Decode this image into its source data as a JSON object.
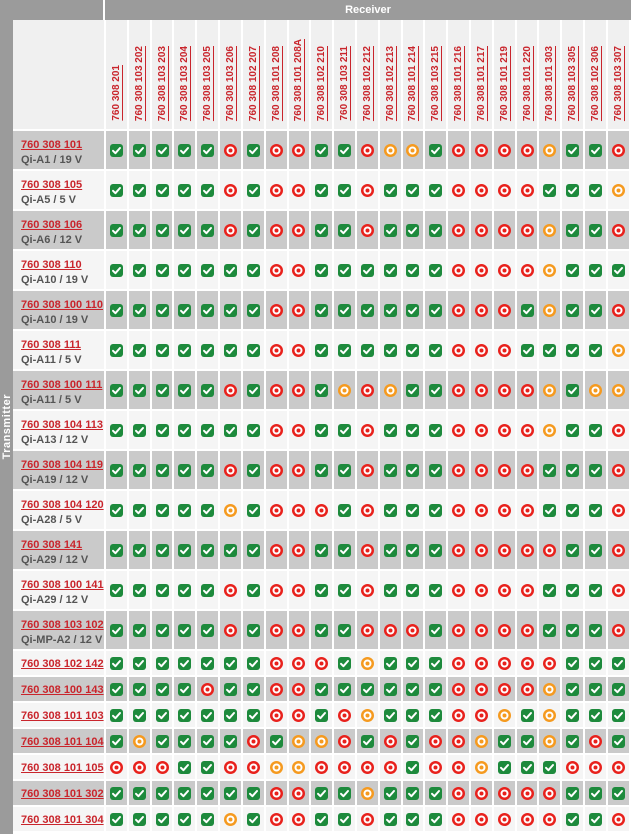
{
  "header": {
    "receiver_label": "Receiver",
    "transmitter_label": "Transmitter"
  },
  "colors": {
    "header_bar": "#9b9b9b",
    "header_bg": "#f0f0f0",
    "row_gray": "#cacaca",
    "row_light": "#f5f5f5",
    "link_red": "#c9252c",
    "green": "#1d8a3c",
    "red": "#e8211c",
    "orange": "#f59a1f"
  },
  "icons": {
    "G": {
      "name": "compatible-check-icon",
      "shape": "rounded-square",
      "color_key": "green"
    },
    "R": {
      "name": "not-compatible-icon",
      "shape": "ring-circle",
      "color_key": "red"
    },
    "O": {
      "name": "conditional-warning-icon",
      "shape": "ring-circle",
      "color_key": "orange"
    }
  },
  "legend_codes": {
    "G": "green-check",
    "R": "red-ring",
    "O": "orange-ring"
  },
  "columns": [
    "760 308 201",
    "760 308 103 202",
    "760 308 103 203",
    "760 308 103 204",
    "760 308 103 205",
    "760 308 103 206",
    "760 308 102 207",
    "760 308 101 208",
    "760 308 101 208A",
    "760 308 102 210",
    "760 308 103 211",
    "760 308 102 212",
    "760 308 102 213",
    "760 308 101 214",
    "760 308 103 215",
    "760 308 101 216",
    "760 308 101 217",
    "760 308 101 219",
    "760 308 101 220",
    "760 308 101 303",
    "760 308 103 305",
    "760 308 102 306",
    "760 308 103 307"
  ],
  "rows": [
    {
      "code": "760 308 101",
      "name": "Qi-A1 / 19 V"
    },
    {
      "code": "760 308 105",
      "name": "Qi-A5 / 5 V"
    },
    {
      "code": "760 308 106",
      "name": "Qi-A6 / 12 V"
    },
    {
      "code": "760 308 110",
      "name": "Qi-A10 / 19 V"
    },
    {
      "code": "760 308 100 110",
      "name": "Qi-A10 / 19 V"
    },
    {
      "code": "760 308 111",
      "name": "Qi-A11 / 5 V"
    },
    {
      "code": "760 308 100 111",
      "name": "Qi-A11 / 5 V"
    },
    {
      "code": "760 308 104 113",
      "name": "Qi-A13 / 12 V"
    },
    {
      "code": "760 308 104 119",
      "name": "Qi-A19 / 12 V"
    },
    {
      "code": "760 308 104 120",
      "name": "Qi-A28 / 5 V"
    },
    {
      "code": "760 308 141",
      "name": "Qi-A29 / 12 V"
    },
    {
      "code": "760 308 100 141",
      "name": "Qi-A29 / 12 V"
    },
    {
      "code": "760 308 103 102",
      "name": "Qi-MP-A2 / 12 V"
    },
    {
      "code": "760 308 102 142",
      "name": ""
    },
    {
      "code": "760 308 100 143",
      "name": ""
    },
    {
      "code": "760 308 101 103",
      "name": ""
    },
    {
      "code": "760 308 101 104",
      "name": ""
    },
    {
      "code": "760 308 101 105",
      "name": ""
    },
    {
      "code": "760 308 101 302",
      "name": ""
    },
    {
      "code": "760 308 101 304",
      "name": ""
    }
  ],
  "matrix": [
    "GGGGGRGRRGGROOGRRRROGGR",
    "GGGGGRGRRGGRGGGRRRRGGGO",
    "GGGGGRGRRGGRGGGRRRROGGR",
    "GGGGGGGRRGGGGGGRRRROGGG",
    "GGGGGGGRRGGGGGGRRRGOGGR",
    "GGGGGGGRRGGGGGGRRRGGGGO",
    "GGGGGRGRRGOROGGRRRROGOO",
    "GGGGGGGRRGGRGGGRRRROGGR",
    "GGGGGRGRRGGRGGGRRRRGGGR",
    "GGGGGOGRRRGRGGGRRRRGGGR",
    "GGGGGGGRRGGRGGGRRRRRGGR",
    "GGGGGRGRRGGRGGGRRRRGGGR",
    "GGGGGRGRRGGRRRGRRRRGGGR",
    "GGGGGGGRRRGOGGGRRRRRGGG",
    "GGGGRGGRRGGGGGGRRRROGGG",
    "GGGGGGGRRGROGGGRROGOGGG",
    "GOGGGGRGOORGRGRROGGOGRG",
    "RRRGGRROORRRRGRROGGGRRR",
    "GGGGGGGRRGGOGGGRRRRRGGG",
    "GGGGGOGRRGGRGGGRRRRRGGR"
  ]
}
